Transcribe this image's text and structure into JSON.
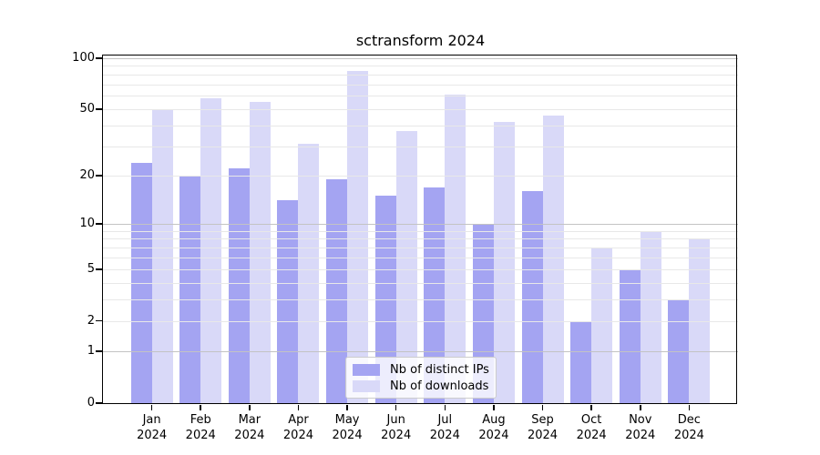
{
  "title": "sctransform 2024",
  "chart_data": {
    "type": "bar",
    "title": "sctransform 2024",
    "categories": [
      "Jan",
      "Feb",
      "Mar",
      "Apr",
      "May",
      "Jun",
      "Jul",
      "Aug",
      "Sep",
      "Oct",
      "Nov",
      "Dec"
    ],
    "x_tick_year": "2024",
    "series": [
      {
        "name": "Nb of distinct IPs",
        "color": "#a4a4f2",
        "values": [
          24,
          20,
          22,
          14,
          19,
          15,
          17,
          10,
          16,
          2,
          5,
          3
        ]
      },
      {
        "name": "Nb of downloads",
        "color": "#d9d9f8",
        "values": [
          50,
          58,
          55,
          31,
          84,
          37,
          61,
          42,
          46,
          7,
          9,
          8
        ]
      }
    ],
    "yscale": "log1p",
    "ylim": [
      0,
      103
    ],
    "yticks": [
      100,
      50,
      20,
      10,
      5,
      2,
      1,
      0
    ],
    "gridlines": {
      "major": [
        1,
        10,
        100
      ],
      "minor": [
        2,
        3,
        4,
        5,
        6,
        7,
        8,
        9,
        20,
        30,
        40,
        50,
        60,
        70,
        80,
        90
      ]
    },
    "grid": true,
    "legend_position": "lower center",
    "xlabel": "",
    "ylabel": ""
  },
  "legend": {
    "items": [
      {
        "label": "Nb of distinct IPs"
      },
      {
        "label": "Nb of downloads"
      }
    ]
  },
  "colors": {
    "background": "#ffffff",
    "bar_distinct_ips": "#a4a4f2",
    "bar_downloads": "#d9d9f8",
    "grid_minor": "#e8e8e8",
    "grid_major": "#c3c3c3",
    "axis": "#000000",
    "text": "#000000",
    "legend_border": "#cccccc"
  }
}
